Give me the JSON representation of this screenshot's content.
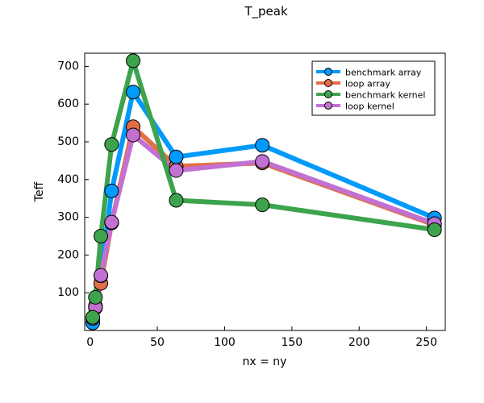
{
  "chart_data": {
    "type": "line",
    "title": "T_peak",
    "xlabel": "nx = ny",
    "ylabel": "Teff",
    "xlim": [
      -4,
      264
    ],
    "ylim": [
      0,
      735
    ],
    "xticks": [
      0,
      50,
      100,
      150,
      200,
      250
    ],
    "yticks": [
      100,
      200,
      300,
      400,
      500,
      600,
      700
    ],
    "grid": false,
    "legend_position": "top-right",
    "series": [
      {
        "name": "benchmark array",
        "color": "#009AFA",
        "x": [
          2,
          4,
          8,
          16,
          32,
          64,
          128,
          256
        ],
        "y": [
          20,
          60,
          145,
          370,
          632,
          460,
          491,
          298
        ]
      },
      {
        "name": "loop array",
        "color": "#E26F46",
        "x": [
          2,
          4,
          8,
          16,
          32,
          64,
          128,
          256
        ],
        "y": [
          30,
          65,
          125,
          285,
          540,
          435,
          444,
          280
        ]
      },
      {
        "name": "benchmark kernel",
        "color": "#3DA44D",
        "x": [
          2,
          4,
          8,
          16,
          32,
          64,
          128,
          256
        ],
        "y": [
          35,
          88,
          250,
          493,
          715,
          345,
          333,
          267
        ]
      },
      {
        "name": "loop kernel",
        "color": "#C271D2",
        "x": [
          2,
          4,
          8,
          16,
          32,
          64,
          128,
          256
        ],
        "y": [
          32,
          62,
          146,
          287,
          518,
          424,
          448,
          283
        ]
      }
    ]
  }
}
